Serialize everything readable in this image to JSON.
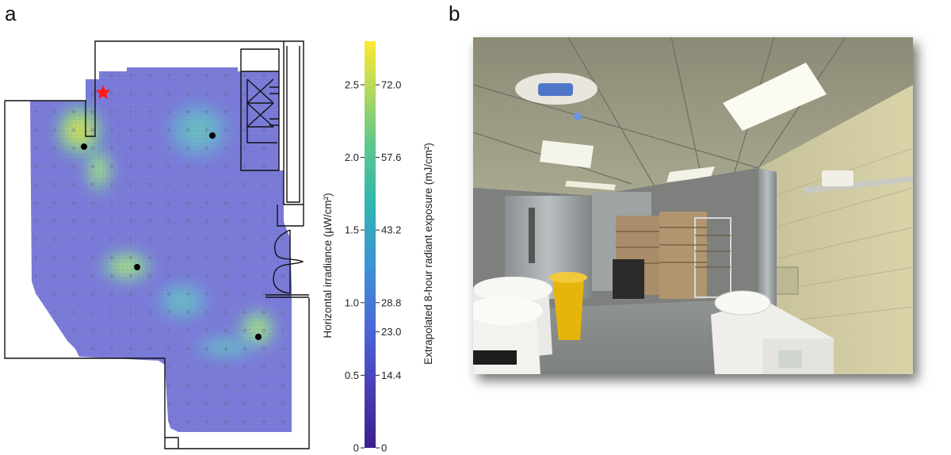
{
  "panel_a": {
    "label": "a",
    "colorbar": {
      "left_label": "Horizontal irradiance (µW/cm²)",
      "right_label": "Extrapolated 8-hour radiant exposure (mJ/cm²)",
      "left_ticks": [
        "0",
        "0.5",
        "1.0",
        "1.5",
        "2.0",
        "2.5"
      ],
      "left_tick_values": [
        0,
        0.5,
        1.0,
        1.5,
        2.0,
        2.5
      ],
      "right_ticks": [
        "0",
        "14.4",
        "23.0",
        "28.8",
        "43.2",
        "57.6",
        "72.0"
      ],
      "right_tick_values": [
        0,
        14.4,
        23.0,
        28.8,
        43.2,
        57.6,
        72.0
      ],
      "range_irradiance": [
        0,
        2.8
      ],
      "range_exposure": [
        0,
        80.64
      ],
      "colors": [
        "#3b1f8f",
        "#4a55c8",
        "#3d8fd8",
        "#2fb3b8",
        "#5cc58a",
        "#b7d55a",
        "#ffe933"
      ]
    },
    "marker_color": "#ff1a1a",
    "marker_name": "star-icon",
    "heat_color_base": "#7b7bd9"
  },
  "panel_b": {
    "label": "b"
  }
}
